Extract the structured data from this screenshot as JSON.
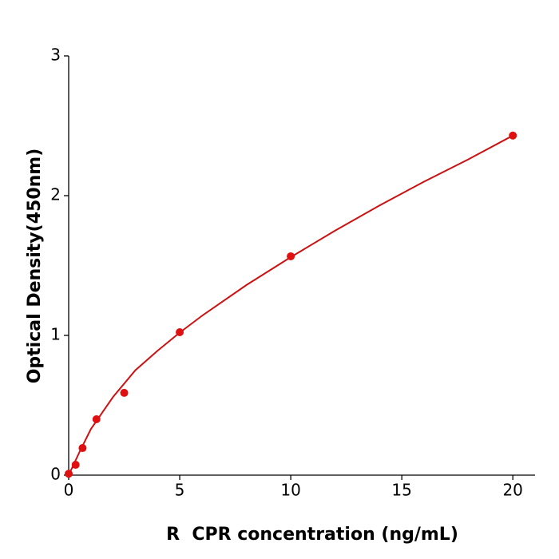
{
  "chart_data": {
    "type": "scatter",
    "xlabel": "R  CPR concentration (ng/mL)",
    "ylabel": "Optical Density(450nm)",
    "xlim": [
      0,
      21
    ],
    "xticks": [
      0,
      5,
      10,
      15,
      20
    ],
    "ylim": [
      0,
      3
    ],
    "yticks": [
      0,
      1,
      2,
      3
    ],
    "series": [
      {
        "type": "scatter",
        "color": "#e01010",
        "x": [
          0,
          0.3125,
          0.625,
          1.25,
          2.5,
          5,
          10,
          20
        ],
        "values": [
          0.01,
          0.074,
          0.194,
          0.4,
          0.589,
          1.023,
          1.566,
          2.43
        ]
      },
      {
        "type": "line",
        "color": "#cc1111",
        "x": [
          0,
          0.5,
          1,
          2,
          3,
          4,
          5,
          6,
          8,
          10,
          12,
          14,
          16,
          18,
          20
        ],
        "values": [
          0.0,
          0.17,
          0.33,
          0.56,
          0.75,
          0.89,
          1.02,
          1.14,
          1.36,
          1.56,
          1.75,
          1.93,
          2.1,
          2.26,
          2.43
        ]
      }
    ]
  }
}
